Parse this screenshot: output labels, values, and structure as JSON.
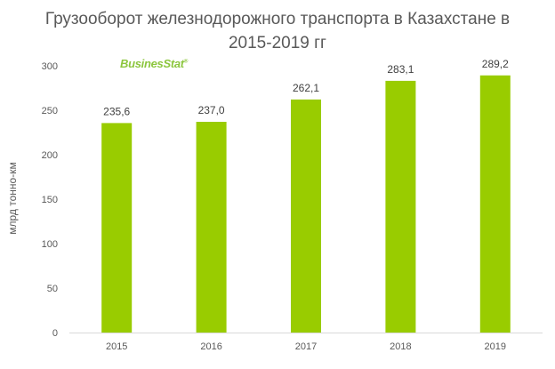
{
  "chart_data": {
    "type": "bar",
    "title_lines": [
      "Грузооборот железнодорожного транспорта в Казахстане в",
      "2015-2019  гг"
    ],
    "categories": [
      "2015",
      "2016",
      "2017",
      "2018",
      "2019"
    ],
    "values": [
      235.6,
      237.0,
      262.1,
      283.1,
      289.2
    ],
    "value_labels": [
      "235,6",
      "237,0",
      "262,1",
      "283,1",
      "289,2"
    ],
    "ylabel": "млрд тонно-км",
    "ylim": [
      0,
      300
    ],
    "yticks": [
      0,
      50,
      100,
      150,
      200,
      250,
      300
    ],
    "grid": false,
    "bar_color": "#99cc00"
  },
  "logo": {
    "main": "BusinesStat",
    "mark": "®"
  }
}
